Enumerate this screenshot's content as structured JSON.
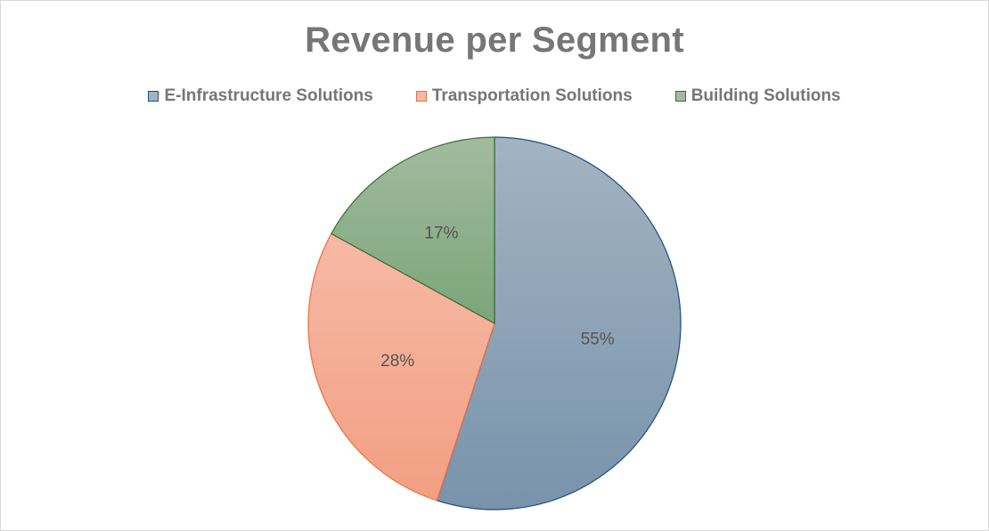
{
  "chart_data": {
    "type": "pie",
    "title": "Revenue per Segment",
    "categories": [
      "E-Infrastructure Solutions",
      "Transportation Solutions",
      "Building Solutions"
    ],
    "values": [
      55,
      28,
      17
    ],
    "labels": [
      "55%",
      "28%",
      "17%"
    ],
    "colors": {
      "fill_top": [
        "#a3b3c2",
        "#f6b9a6",
        "#a2bb9f"
      ],
      "fill_bottom": [
        "#7893ab",
        "#f29f82",
        "#7ba578"
      ],
      "stroke": [
        "#1f4e79",
        "#e87040",
        "#3a6b35"
      ]
    },
    "legend_position": "top"
  }
}
